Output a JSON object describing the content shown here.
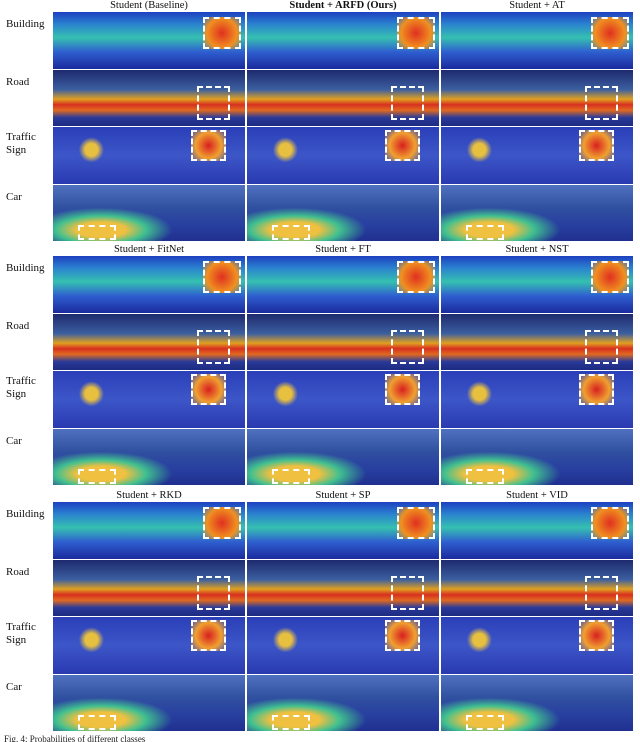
{
  "blocks": [
    {
      "titles": [
        "Student (Baseline)",
        "Student + ARFD (Ours)",
        "Student + AT"
      ]
    },
    {
      "titles": [
        "Student + FitNet",
        "Student + FT",
        "Student + NST"
      ]
    },
    {
      "titles": [
        "Student + RKD",
        "Student + SP",
        "Student + VID"
      ]
    }
  ],
  "row_labels": [
    "Building",
    "Road",
    "Traffic Sign",
    "Car"
  ],
  "caption": "Fig. 4: Probabilities of different classes"
}
